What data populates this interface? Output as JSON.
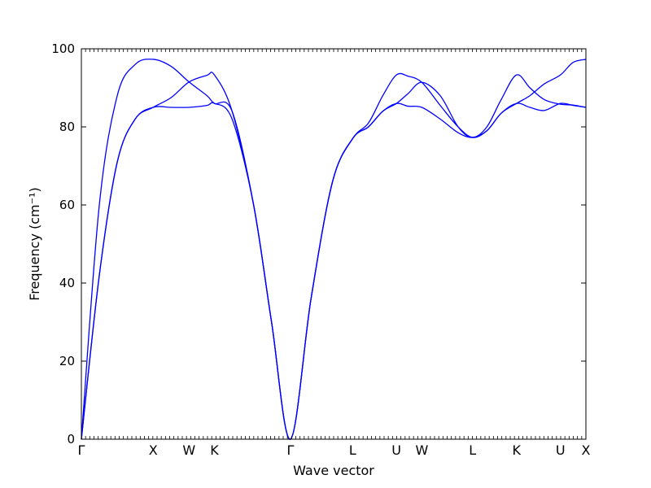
{
  "chart_data": {
    "type": "line",
    "title": "",
    "xlabel": "Wave vector",
    "ylabel": "Frequency (cm⁻¹)",
    "ylim": [
      0,
      100
    ],
    "yticks": [
      0,
      20,
      40,
      60,
      80,
      100
    ],
    "xticks": [
      {
        "label": "Γ",
        "x": 0
      },
      {
        "label": "X",
        "x": 1
      },
      {
        "label": "W",
        "x": 1.5
      },
      {
        "label": "K",
        "x": 1.854
      },
      {
        "label": "Γ",
        "x": 2.914
      },
      {
        "label": "L",
        "x": 3.78
      },
      {
        "label": "U",
        "x": 4.39
      },
      {
        "label": "W",
        "x": 4.744
      },
      {
        "label": "L",
        "x": 5.451
      },
      {
        "label": "K",
        "x": 6.063
      },
      {
        "label": "U",
        "x": 6.675
      },
      {
        "label": "X",
        "x": 7.03
      }
    ],
    "xlim": [
      0,
      7.03
    ],
    "line_color": "#0000ff",
    "grid": false,
    "series": [
      {
        "values": [
          [
            0,
            0
          ],
          [
            0.25,
            42
          ],
          [
            0.5,
            71
          ],
          [
            0.75,
            82
          ],
          [
            1,
            85
          ],
          [
            1.25,
            85
          ],
          [
            1.5,
            85
          ],
          [
            1.75,
            85.5
          ],
          [
            1.854,
            86
          ],
          [
            2.1,
            82
          ],
          [
            2.4,
            60
          ],
          [
            2.65,
            30
          ],
          [
            2.914,
            0
          ],
          [
            3.2,
            36
          ],
          [
            3.5,
            66
          ],
          [
            3.78,
            77
          ],
          [
            4.0,
            80
          ],
          [
            4.2,
            84
          ],
          [
            4.39,
            86
          ],
          [
            4.55,
            85.3
          ],
          [
            4.744,
            85
          ],
          [
            5.0,
            82
          ],
          [
            5.25,
            78.5
          ],
          [
            5.451,
            77.3
          ],
          [
            5.65,
            79
          ],
          [
            5.85,
            83.5
          ],
          [
            6.063,
            86
          ],
          [
            6.25,
            85
          ],
          [
            6.45,
            84.2
          ],
          [
            6.675,
            86
          ],
          [
            6.85,
            85.5
          ],
          [
            7.03,
            85
          ]
        ]
      },
      {
        "values": [
          [
            0,
            0
          ],
          [
            0.25,
            42
          ],
          [
            0.5,
            71
          ],
          [
            0.75,
            82
          ],
          [
            1,
            85
          ],
          [
            1.25,
            87.5
          ],
          [
            1.5,
            91.5
          ],
          [
            1.75,
            93.2
          ],
          [
            1.854,
            93.3
          ],
          [
            2.1,
            84
          ],
          [
            2.4,
            60
          ],
          [
            2.65,
            30
          ],
          [
            2.914,
            0
          ],
          [
            3.2,
            36
          ],
          [
            3.5,
            66
          ],
          [
            3.78,
            77
          ],
          [
            4.0,
            80
          ],
          [
            4.2,
            84
          ],
          [
            4.39,
            86
          ],
          [
            4.55,
            88.5
          ],
          [
            4.744,
            91.4
          ],
          [
            5.0,
            88
          ],
          [
            5.25,
            80
          ],
          [
            5.451,
            77.3
          ],
          [
            5.65,
            80
          ],
          [
            5.85,
            87
          ],
          [
            6.063,
            93.3
          ],
          [
            6.25,
            90
          ],
          [
            6.45,
            87
          ],
          [
            6.675,
            85.8
          ],
          [
            6.85,
            85.6
          ],
          [
            7.03,
            85
          ]
        ]
      },
      {
        "values": [
          [
            0,
            0
          ],
          [
            0.25,
            60
          ],
          [
            0.5,
            88
          ],
          [
            0.75,
            96
          ],
          [
            1,
            97.3
          ],
          [
            1.25,
            95.5
          ],
          [
            1.5,
            91.5
          ],
          [
            1.75,
            88
          ],
          [
            1.854,
            86
          ],
          [
            2.1,
            84
          ],
          [
            2.4,
            60
          ],
          [
            2.65,
            30
          ],
          [
            2.914,
            0
          ],
          [
            3.2,
            36
          ],
          [
            3.5,
            66
          ],
          [
            3.78,
            77
          ],
          [
            4.0,
            81
          ],
          [
            4.2,
            88
          ],
          [
            4.39,
            93.3
          ],
          [
            4.55,
            93
          ],
          [
            4.744,
            91.4
          ],
          [
            5.0,
            85.5
          ],
          [
            5.25,
            80
          ],
          [
            5.451,
            77.3
          ],
          [
            5.65,
            79
          ],
          [
            5.85,
            83.5
          ],
          [
            6.063,
            86
          ],
          [
            6.25,
            88
          ],
          [
            6.45,
            91
          ],
          [
            6.675,
            93.3
          ],
          [
            6.85,
            96.5
          ],
          [
            7.03,
            97.3
          ]
        ]
      }
    ]
  }
}
